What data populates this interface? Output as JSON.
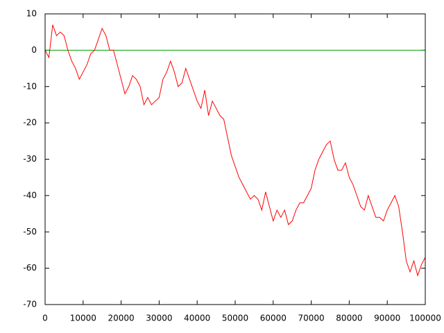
{
  "chart_data": {
    "type": "line",
    "x": [
      0,
      1000,
      2000,
      3000,
      4000,
      5000,
      6000,
      7000,
      8000,
      9000,
      10000,
      11000,
      12000,
      13000,
      14000,
      15000,
      16000,
      17000,
      18000,
      19000,
      20000,
      21000,
      22000,
      23000,
      24000,
      25000,
      26000,
      27000,
      28000,
      29000,
      30000,
      31000,
      32000,
      33000,
      34000,
      35000,
      36000,
      37000,
      38000,
      39000,
      40000,
      41000,
      42000,
      43000,
      44000,
      45000,
      46000,
      47000,
      48000,
      49000,
      50000,
      51000,
      52000,
      53000,
      54000,
      55000,
      56000,
      57000,
      58000,
      59000,
      60000,
      61000,
      62000,
      63000,
      64000,
      65000,
      66000,
      67000,
      68000,
      69000,
      70000,
      71000,
      72000,
      73000,
      74000,
      75000,
      76000,
      77000,
      78000,
      79000,
      80000,
      81000,
      82000,
      83000,
      84000,
      85000,
      86000,
      87000,
      88000,
      89000,
      90000,
      91000,
      92000,
      93000,
      94000,
      95000,
      96000,
      97000,
      98000,
      99000,
      100000
    ],
    "series": [
      {
        "color": "#ff0000",
        "values": [
          0,
          -2,
          7,
          4,
          5,
          4,
          0,
          -3,
          -5,
          -8,
          -6,
          -4,
          -1,
          0,
          3,
          6,
          4,
          0,
          0,
          -4,
          -8,
          -12,
          -10,
          -7,
          -8,
          -10,
          -15,
          -13,
          -15,
          -14,
          -13,
          -8,
          -6,
          -3,
          -6,
          -10,
          -9,
          -5,
          -8,
          -11,
          -14,
          -16,
          -11,
          -18,
          -14,
          -16,
          -18,
          -19,
          -24,
          -29,
          -32,
          -35,
          -37,
          -39,
          -41,
          -40,
          -41,
          -44,
          -39,
          -43,
          -47,
          -44,
          -46,
          -44,
          -48,
          -47,
          -44,
          -42,
          -42,
          -40,
          -38,
          -33,
          -30,
          -28,
          -26,
          -25,
          -30,
          -33,
          -33,
          -31,
          -35,
          -37,
          -40,
          -43,
          -44,
          -40,
          -43,
          -46,
          -46,
          -47,
          -44,
          -42,
          -40,
          -43,
          -50,
          -58,
          -61,
          -58,
          -62,
          -59,
          -57
        ]
      }
    ],
    "reference_line": {
      "color": "#00a000",
      "x": [
        0,
        100000
      ],
      "values": [
        0,
        0
      ]
    },
    "xlim": [
      0,
      100000
    ],
    "ylim": [
      -70,
      10
    ],
    "xticks": [
      0,
      10000,
      20000,
      30000,
      40000,
      50000,
      60000,
      70000,
      80000,
      90000,
      100000
    ],
    "yticks": [
      -70,
      -60,
      -50,
      -40,
      -30,
      -20,
      -10,
      0,
      10
    ]
  }
}
